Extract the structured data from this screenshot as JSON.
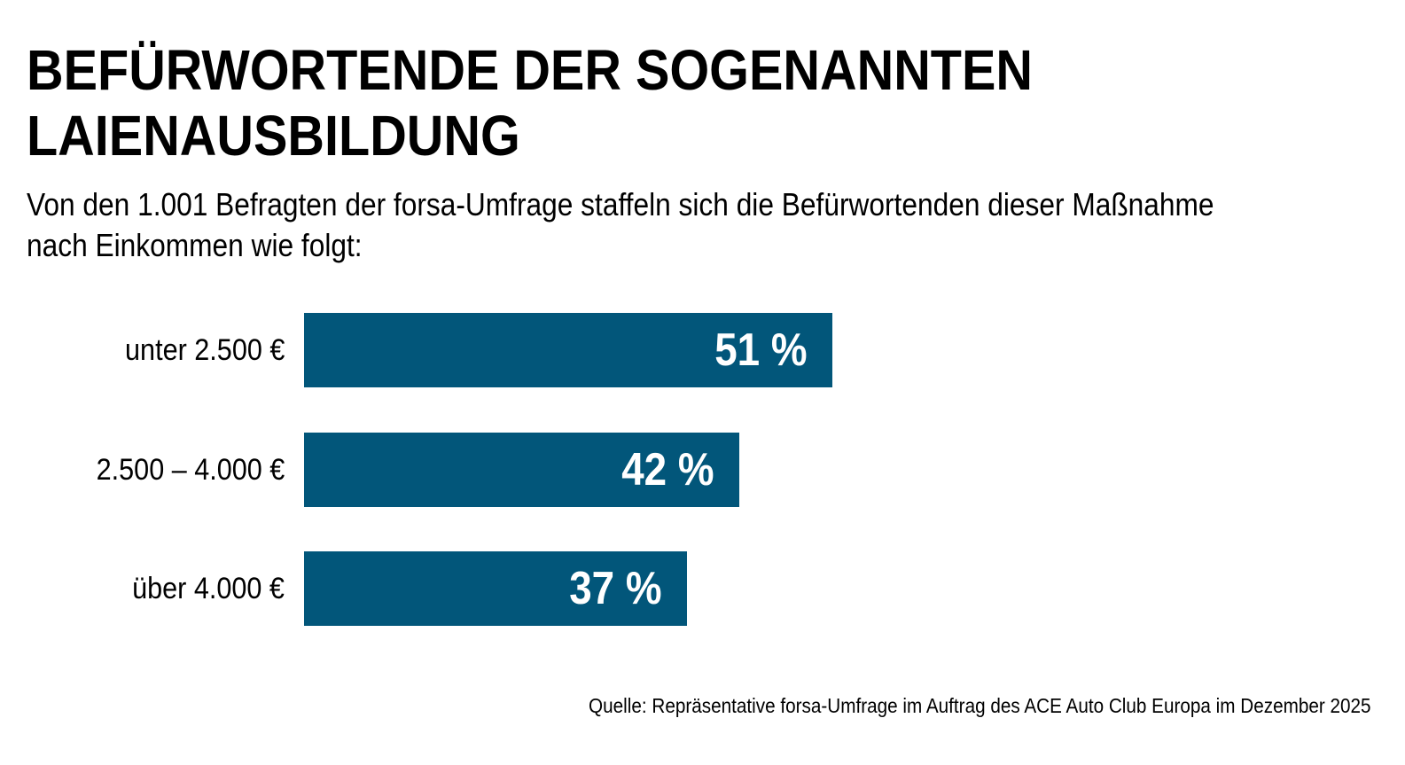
{
  "chart_data": {
    "type": "bar",
    "orientation": "horizontal",
    "title": "BEFÜRWORTENDE DER SOGENANNTEN LAIENAUSBILDUNG",
    "title_lines": [
      "BEFÜRWORTENDE DER SOGENANNTEN",
      "LAIENAUSBILDUNG"
    ],
    "subtitle": "Von den 1.001 Befragten der forsa-Umfrage staffeln sich die Befürwortenden dieser Maßnahme nach Einkommen wie folgt:",
    "categories": [
      "unter 2.500 €",
      "2.500 – 4.000 €",
      "über 4.000 €"
    ],
    "values": [
      51,
      42,
      37
    ],
    "value_labels": [
      "51 %",
      "42 %",
      "37 %"
    ],
    "unit": "%",
    "xlabel": "",
    "ylabel": "",
    "xlim": [
      0,
      100
    ],
    "grid": false,
    "legend": "none",
    "bar_color": "#02567a",
    "source": "Quelle: Repräsentative forsa-Umfrage im Auftrag des ACE Auto Club Europa im Dezember 2025"
  }
}
